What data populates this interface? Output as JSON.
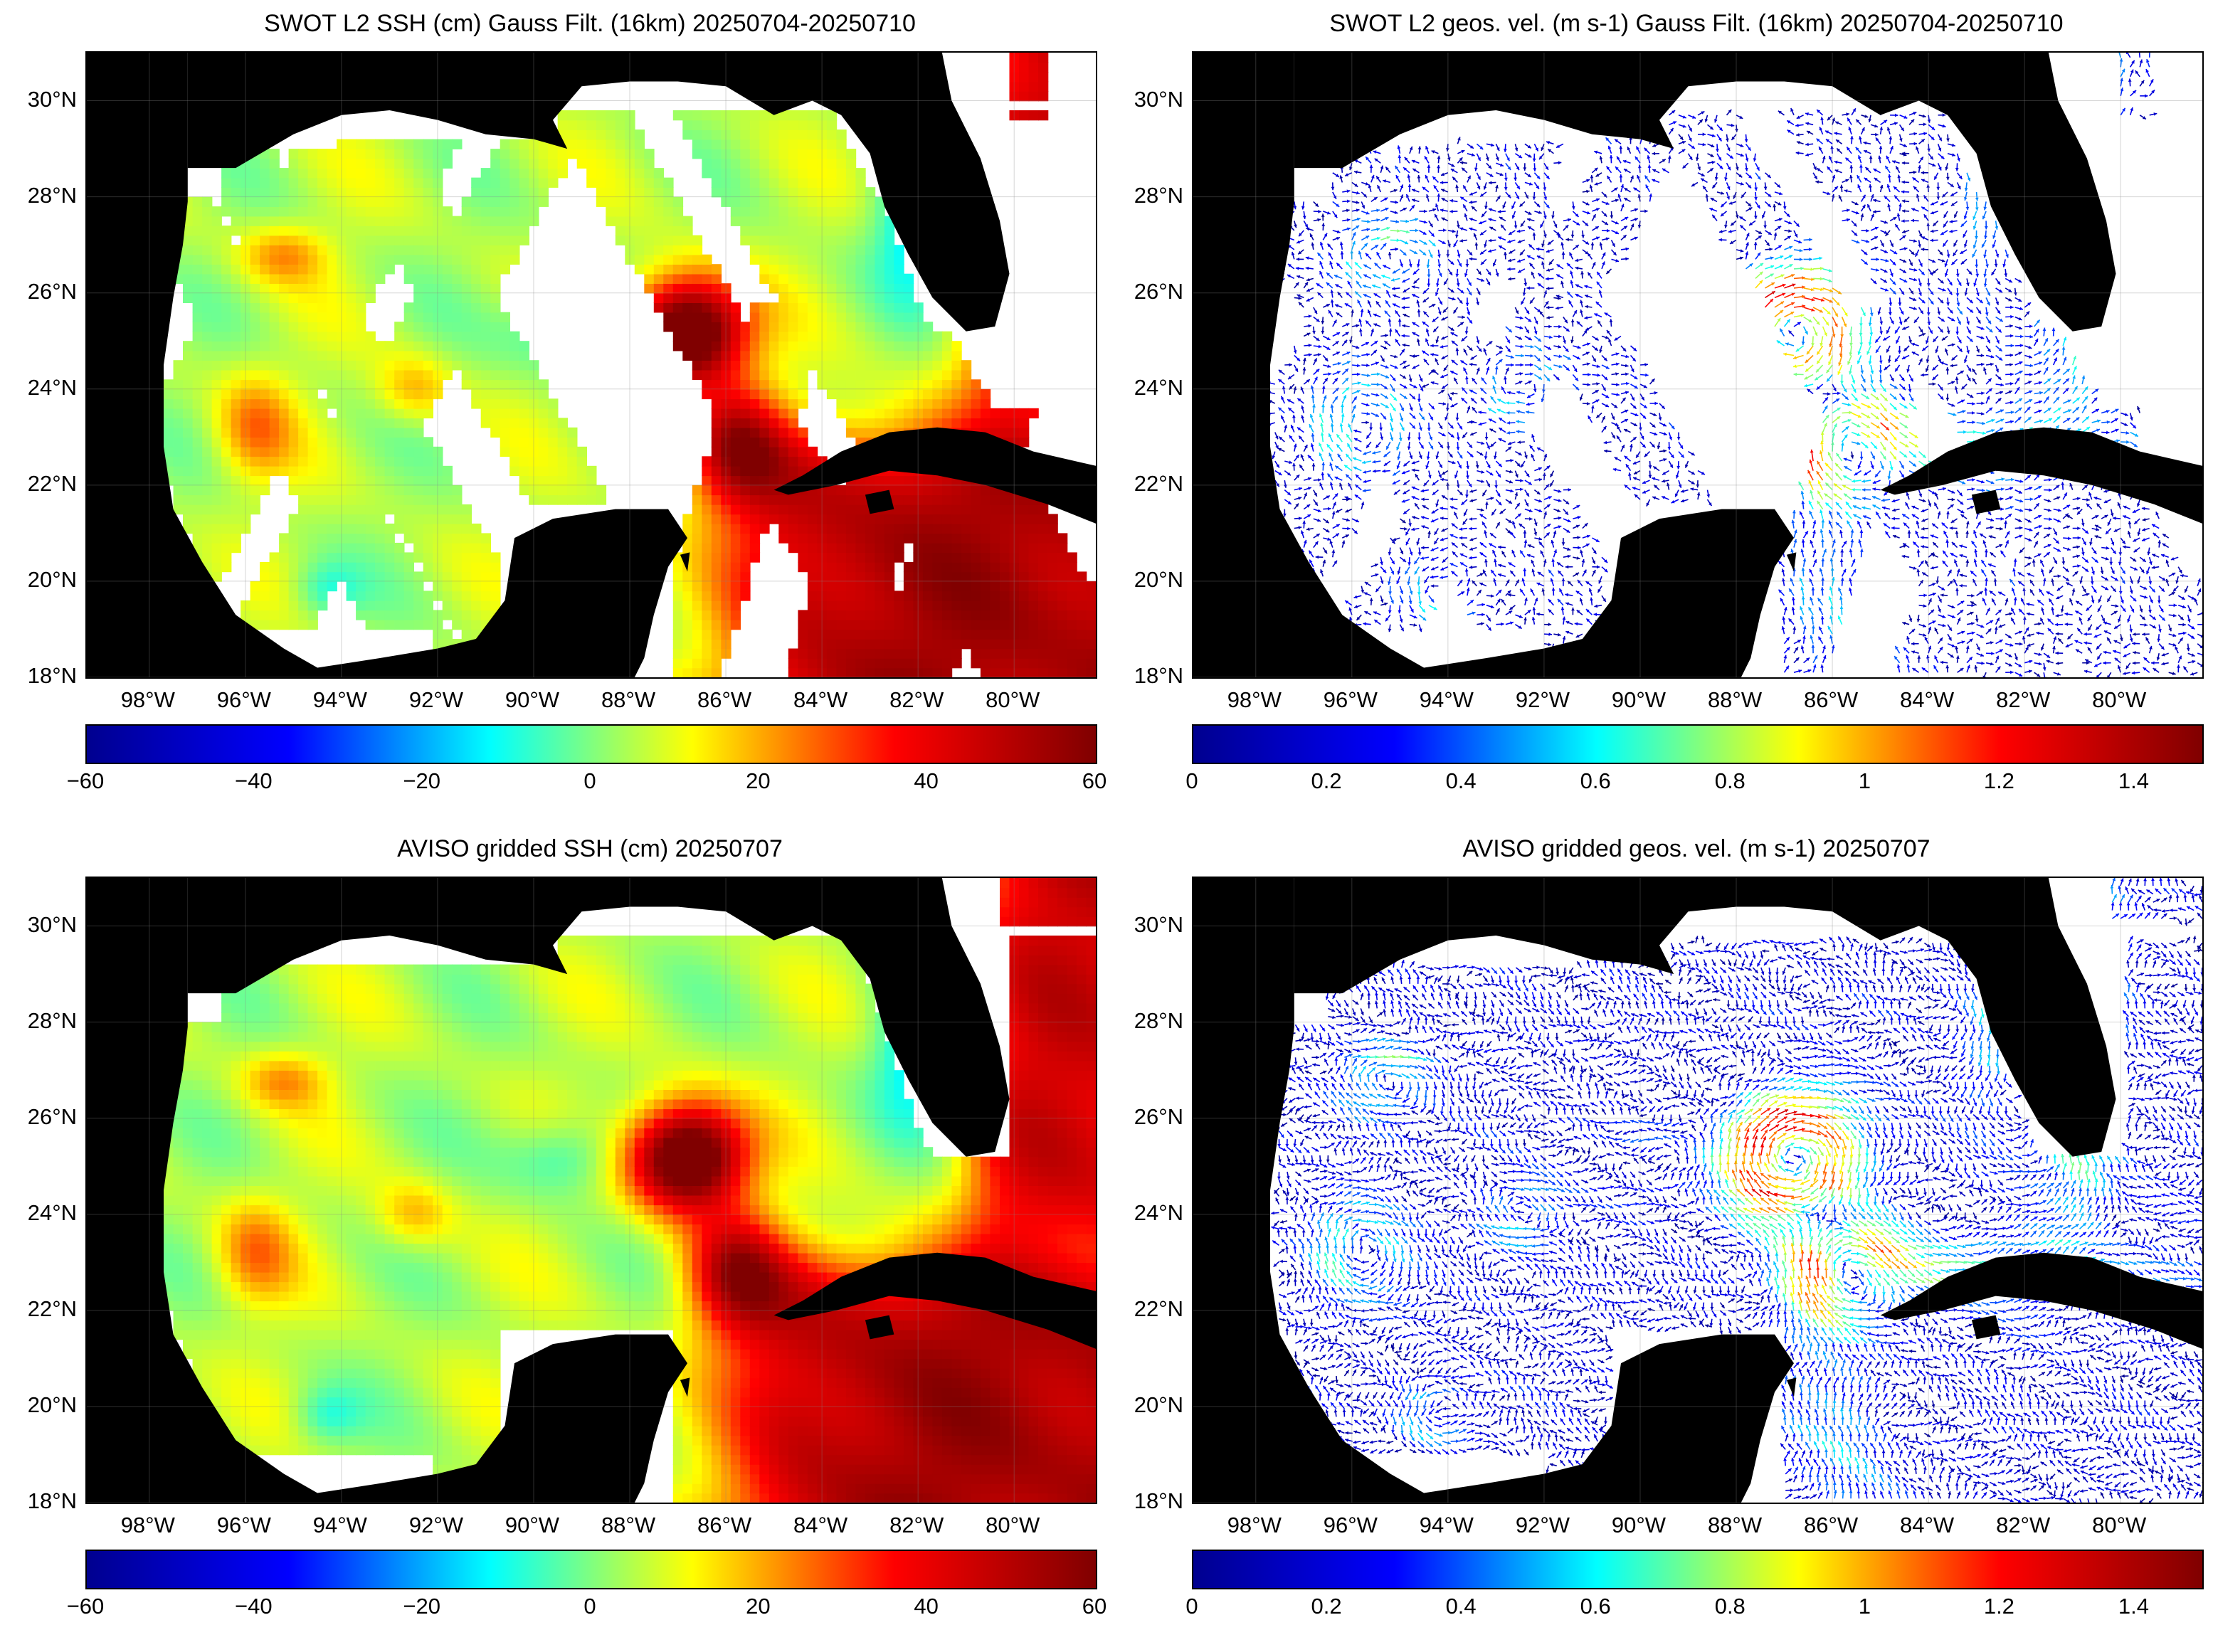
{
  "colors": {
    "land": "#000000",
    "nodata": "#ffffff",
    "jet": [
      "#00008f",
      "#0000ff",
      "#00ffff",
      "#ffff00",
      "#ff0000",
      "#800000"
    ]
  },
  "axes": {
    "lat_labels": [
      "30°N",
      "28°N",
      "26°N",
      "24°N",
      "22°N",
      "20°N",
      "18°N"
    ],
    "lon_labels": [
      "98°W",
      "96°W",
      "94°W",
      "92°W",
      "90°W",
      "88°W",
      "86°W",
      "84°W",
      "82°W",
      "80°W"
    ],
    "lon_range": [
      -99.3,
      -78.3
    ],
    "lat_range": [
      18,
      31
    ]
  },
  "panels": [
    {
      "id": "swot-ssh",
      "title": "SWOT L2 SSH (cm) Gauss Filt. (16km) 20250704-20250710",
      "kind": "ssh",
      "coverage": "swaths",
      "colorbar": {
        "range": [
          -60,
          60
        ],
        "ticks": [
          "−60",
          "−40",
          "−20",
          "0",
          "20",
          "40",
          "60"
        ]
      }
    },
    {
      "id": "swot-vel",
      "title": "SWOT L2 geos. vel. (m s-1) Gauss Filt. (16km) 20250704-20250710",
      "kind": "velocity",
      "coverage": "swaths",
      "colorbar": {
        "range": [
          0,
          1.5
        ],
        "ticks": [
          "0",
          "0.2",
          "0.4",
          "0.6",
          "0.8",
          "1",
          "1.2",
          "1.4"
        ]
      }
    },
    {
      "id": "aviso-ssh",
      "title": "AVISO gridded SSH (cm) 20250707",
      "kind": "ssh",
      "coverage": "full",
      "colorbar": {
        "range": [
          -60,
          60
        ],
        "ticks": [
          "−60",
          "−40",
          "−20",
          "0",
          "20",
          "40",
          "60"
        ]
      }
    },
    {
      "id": "aviso-vel",
      "title": "AVISO gridded geos. vel. (m s-1)  20250707",
      "kind": "velocity",
      "coverage": "full",
      "colorbar": {
        "range": [
          0,
          1.5
        ],
        "ticks": [
          "0",
          "0.2",
          "0.4",
          "0.6",
          "0.8",
          "1",
          "1.2",
          "1.4"
        ]
      }
    }
  ]
}
